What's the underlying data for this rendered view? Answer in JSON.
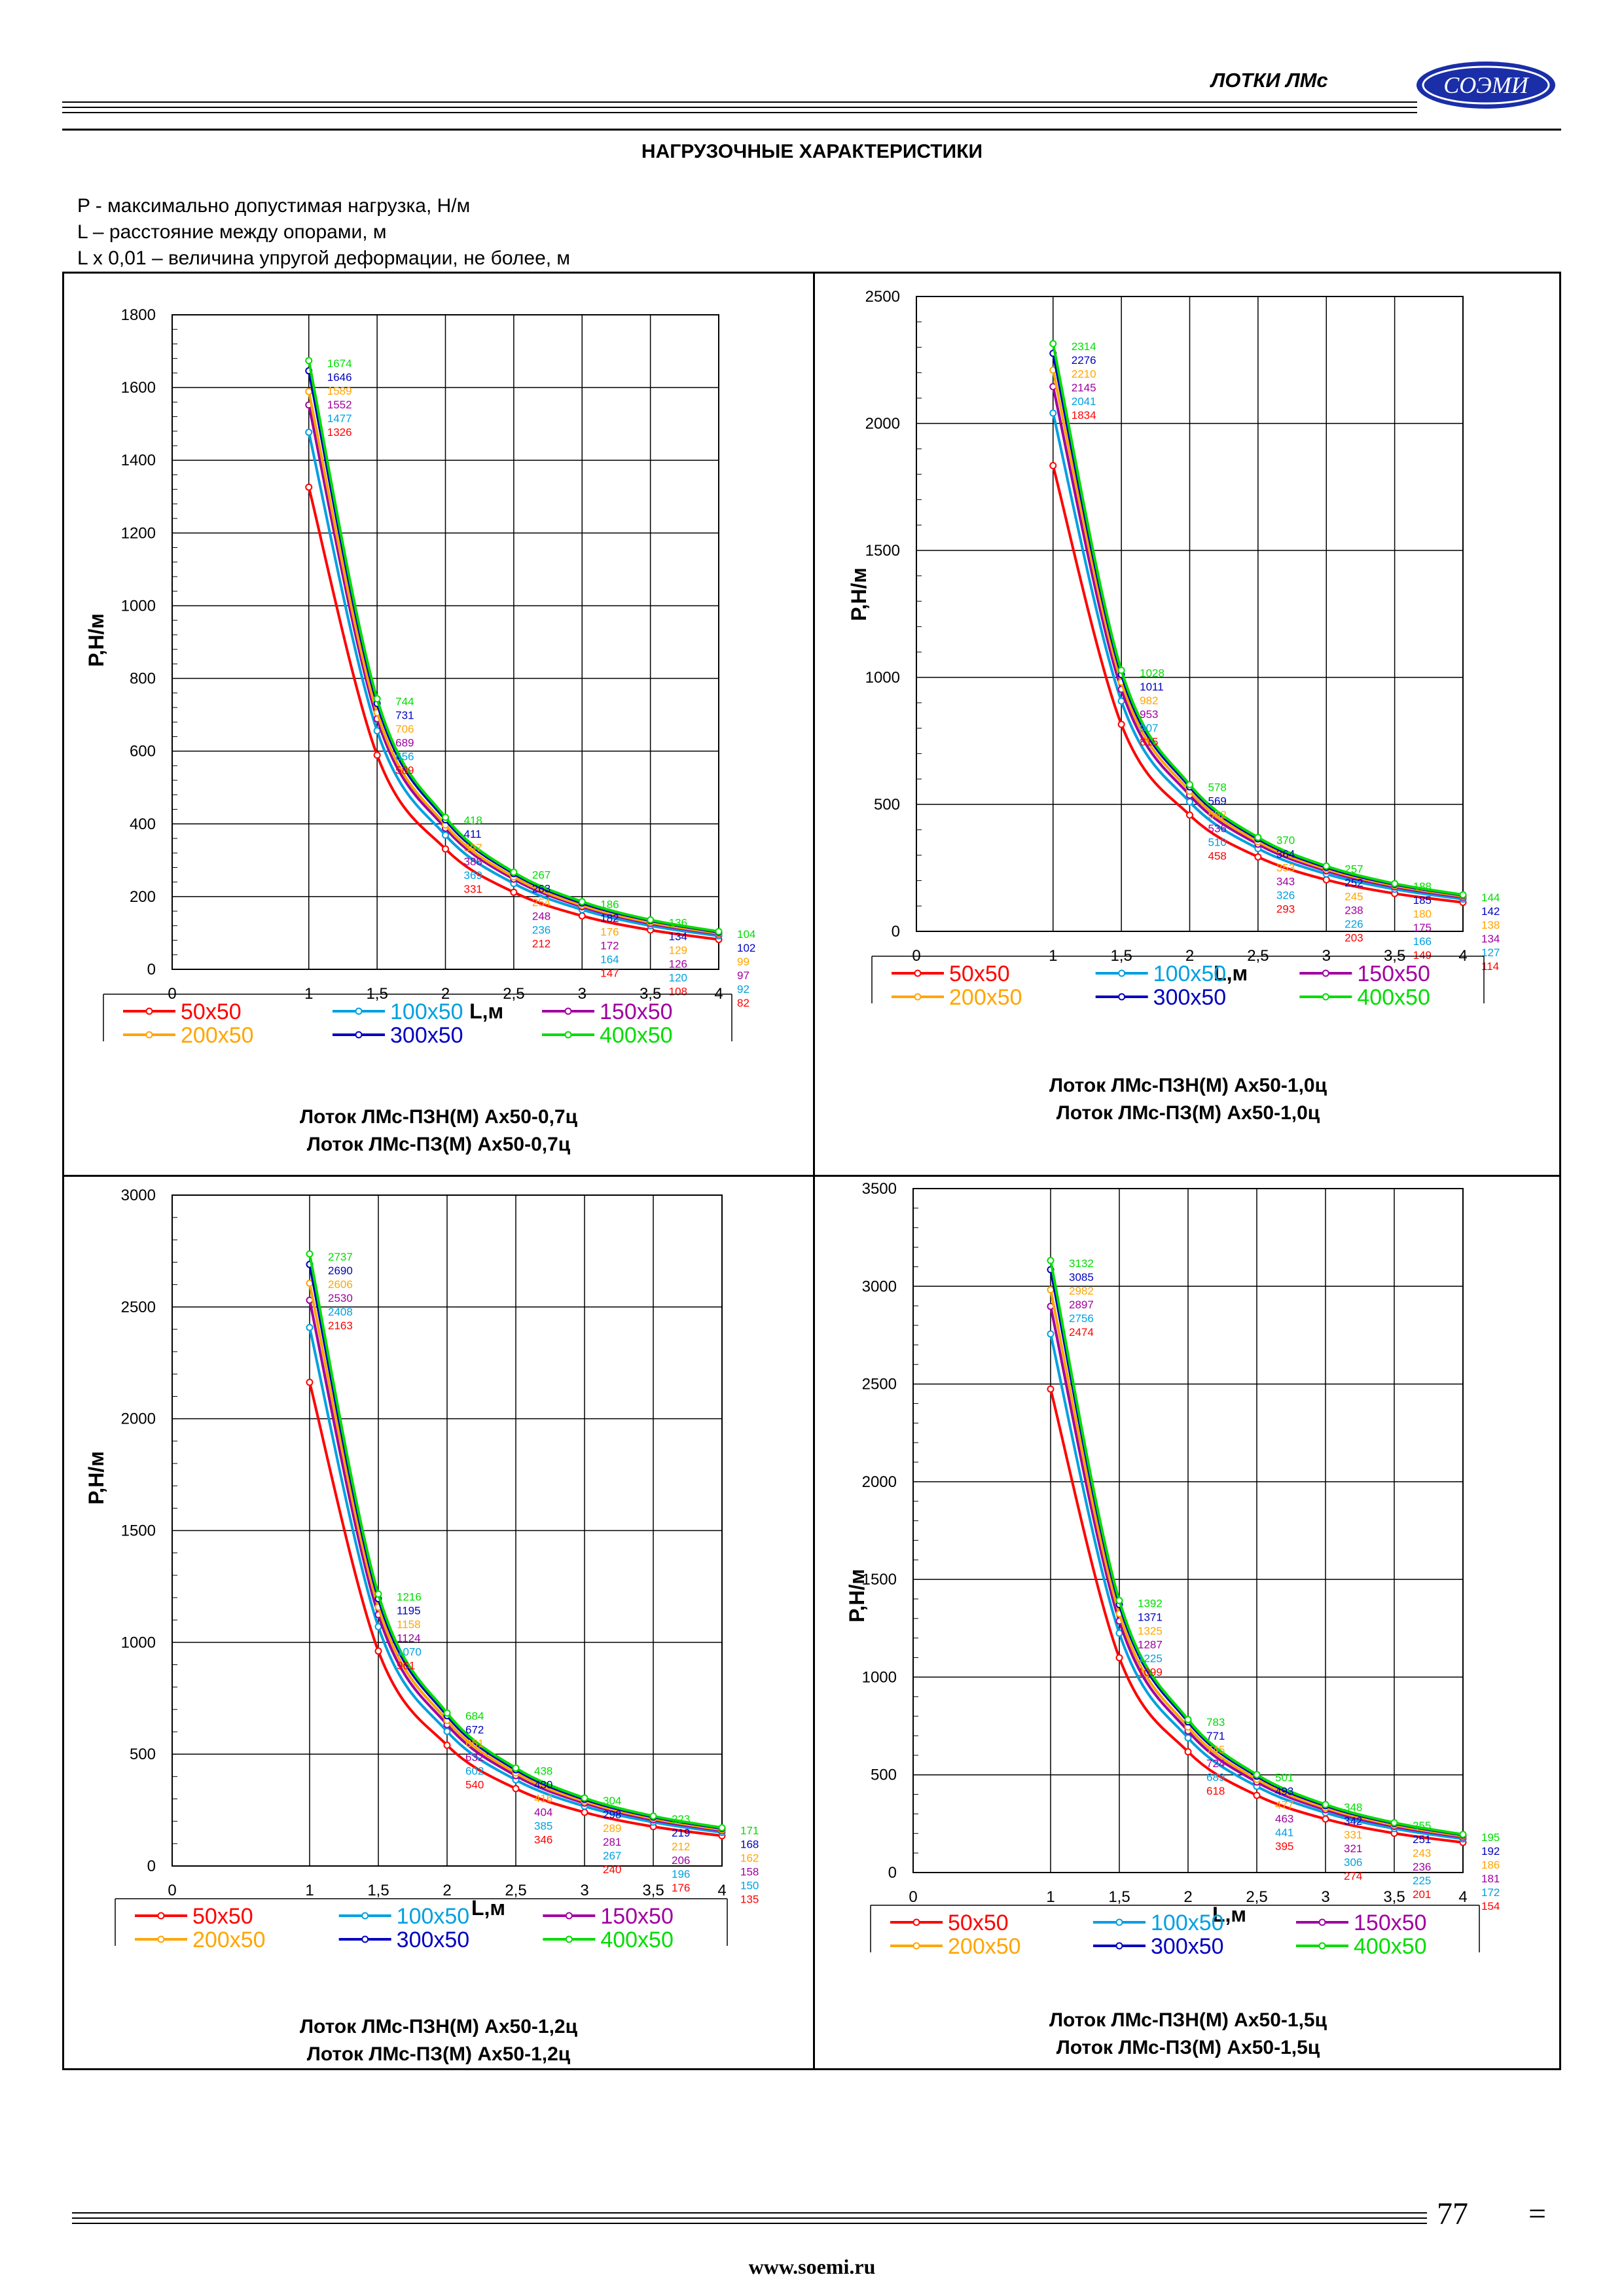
{
  "header": {
    "title": "ЛОТКИ ЛМс",
    "logo_text": "СОЭМИ"
  },
  "section_title": "НАГРУЗОЧНЫЕ ХАРАКТЕРИСТИКИ",
  "definitions": [
    "P - максимально допустимая нагрузка, Н/м",
    "L – расстояние между опорами, м",
    "L x 0,01 – величина упругой деформации, не более, м"
  ],
  "footer": {
    "page_number": "77",
    "page_mark": "=",
    "website": "www.soemi.ru"
  },
  "colors": {
    "s50": "#ff0000",
    "s100": "#00a0e0",
    "s150": "#a000a0",
    "s200": "#ffa500",
    "s300": "#0000c0",
    "s400": "#00dd00",
    "logo": "#1a2ea8"
  },
  "chart_data": [
    {
      "type": "line",
      "caption": [
        "Лоток ЛМс-ПЗН(М) Ах50-0,7ц",
        "Лоток ЛМс-ПЗ(М) Ах50-0,7ц"
      ],
      "xlabel": "L,м",
      "ylabel": "P,Н/м",
      "x": [
        1,
        1.5,
        2,
        2.5,
        3,
        3.5,
        4
      ],
      "xticks": [
        "0",
        "1",
        "1,5",
        "2",
        "2,5",
        "3",
        "3,5",
        "4"
      ],
      "ylim": [
        0,
        1800
      ],
      "ystep": 200,
      "grid": true,
      "legend": "bottom",
      "series": [
        {
          "name": "50x50",
          "color": "#ff0000",
          "values": [
            1326,
            589,
            331,
            212,
            147,
            108,
            82
          ]
        },
        {
          "name": "100x50",
          "color": "#00a0e0",
          "values": [
            1477,
            656,
            369,
            236,
            164,
            120,
            92
          ]
        },
        {
          "name": "150x50",
          "color": "#a000a0",
          "values": [
            1552,
            689,
            388,
            248,
            172,
            126,
            97
          ]
        },
        {
          "name": "200x50",
          "color": "#ffa500",
          "values": [
            1589,
            706,
            397,
            254,
            176,
            129,
            99
          ]
        },
        {
          "name": "300x50",
          "color": "#0000c0",
          "values": [
            1646,
            731,
            411,
            263,
            182,
            134,
            102
          ]
        },
        {
          "name": "400x50",
          "color": "#00dd00",
          "values": [
            1674,
            744,
            418,
            267,
            186,
            136,
            104
          ]
        }
      ]
    },
    {
      "type": "line",
      "caption": [
        "Лоток ЛМс-ПЗН(М) Ах50-1,0ц",
        "Лоток ЛМс-ПЗ(М) Ах50-1,0ц"
      ],
      "xlabel": "L,м",
      "ylabel": "P,Н/м",
      "x": [
        1,
        1.5,
        2,
        2.5,
        3,
        3.5,
        4
      ],
      "xticks": [
        "0",
        "1",
        "1,5",
        "2",
        "2,5",
        "3",
        "3,5",
        "4"
      ],
      "ylim": [
        0,
        2500
      ],
      "ystep": 500,
      "grid": true,
      "legend": "bottom",
      "series": [
        {
          "name": "50x50",
          "color": "#ff0000",
          "values": [
            1834,
            815,
            458,
            293,
            203,
            149,
            114
          ]
        },
        {
          "name": "100x50",
          "color": "#00a0e0",
          "values": [
            2041,
            907,
            510,
            326,
            226,
            166,
            127
          ]
        },
        {
          "name": "150x50",
          "color": "#a000a0",
          "values": [
            2145,
            953,
            536,
            343,
            238,
            175,
            134
          ]
        },
        {
          "name": "200x50",
          "color": "#ffa500",
          "values": [
            2210,
            982,
            552,
            353,
            245,
            180,
            138
          ]
        },
        {
          "name": "300x50",
          "color": "#0000c0",
          "values": [
            2276,
            1011,
            569,
            364,
            252,
            185,
            142
          ]
        },
        {
          "name": "400x50",
          "color": "#00dd00",
          "values": [
            2314,
            1028,
            578,
            370,
            257,
            188,
            144
          ]
        }
      ]
    },
    {
      "type": "line",
      "caption": [
        "Лоток ЛМс-ПЗН(М) Ах50-1,2ц",
        "Лоток ЛМс-ПЗ(М) Ах50-1,2ц"
      ],
      "xlabel": "L,м",
      "ylabel": "P,Н/м",
      "x": [
        1,
        1.5,
        2,
        2.5,
        3,
        3.5,
        4
      ],
      "xticks": [
        "0",
        "1",
        "1,5",
        "2",
        "2,5",
        "3",
        "3,5",
        "4"
      ],
      "ylim": [
        0,
        3000
      ],
      "ystep": 500,
      "grid": true,
      "legend": "bottom",
      "series": [
        {
          "name": "50x50",
          "color": "#ff0000",
          "values": [
            2163,
            961,
            540,
            346,
            240,
            176,
            135
          ]
        },
        {
          "name": "100x50",
          "color": "#00a0e0",
          "values": [
            2408,
            1070,
            602,
            385,
            267,
            196,
            150
          ]
        },
        {
          "name": "150x50",
          "color": "#a000a0",
          "values": [
            2530,
            1124,
            632,
            404,
            281,
            206,
            158
          ]
        },
        {
          "name": "200x50",
          "color": "#ffa500",
          "values": [
            2606,
            1158,
            651,
            416,
            289,
            212,
            162
          ]
        },
        {
          "name": "300x50",
          "color": "#0000c0",
          "values": [
            2690,
            1195,
            672,
            430,
            298,
            219,
            168
          ]
        },
        {
          "name": "400x50",
          "color": "#00dd00",
          "values": [
            2737,
            1216,
            684,
            438,
            304,
            223,
            171
          ]
        }
      ]
    },
    {
      "type": "line",
      "caption": [
        "Лоток ЛМс-ПЗН(М) Ах50-1,5ц",
        "Лоток ЛМс-ПЗ(М) Ах50-1,5ц"
      ],
      "xlabel": "L,м",
      "ylabel": "P,Н/м",
      "x": [
        1,
        1.5,
        2,
        2.5,
        3,
        3.5,
        4
      ],
      "xticks": [
        "0",
        "1",
        "1,5",
        "2",
        "2,5",
        "3",
        "3,5",
        "4"
      ],
      "ylim": [
        0,
        3500
      ],
      "ystep": 500,
      "grid": true,
      "legend": "bottom",
      "series": [
        {
          "name": "50x50",
          "color": "#ff0000",
          "values": [
            2474,
            1099,
            618,
            395,
            274,
            201,
            154
          ]
        },
        {
          "name": "100x50",
          "color": "#00a0e0",
          "values": [
            2756,
            1225,
            689,
            441,
            306,
            225,
            172
          ]
        },
        {
          "name": "150x50",
          "color": "#a000a0",
          "values": [
            2897,
            1287,
            724,
            463,
            321,
            236,
            181
          ]
        },
        {
          "name": "200x50",
          "color": "#ffa500",
          "values": [
            2982,
            1325,
            745,
            477,
            331,
            243,
            186
          ]
        },
        {
          "name": "300x50",
          "color": "#0000c0",
          "values": [
            3085,
            1371,
            771,
            493,
            342,
            251,
            192
          ]
        },
        {
          "name": "400x50",
          "color": "#00dd00",
          "values": [
            3132,
            1392,
            783,
            501,
            348,
            255,
            195
          ]
        }
      ]
    }
  ]
}
